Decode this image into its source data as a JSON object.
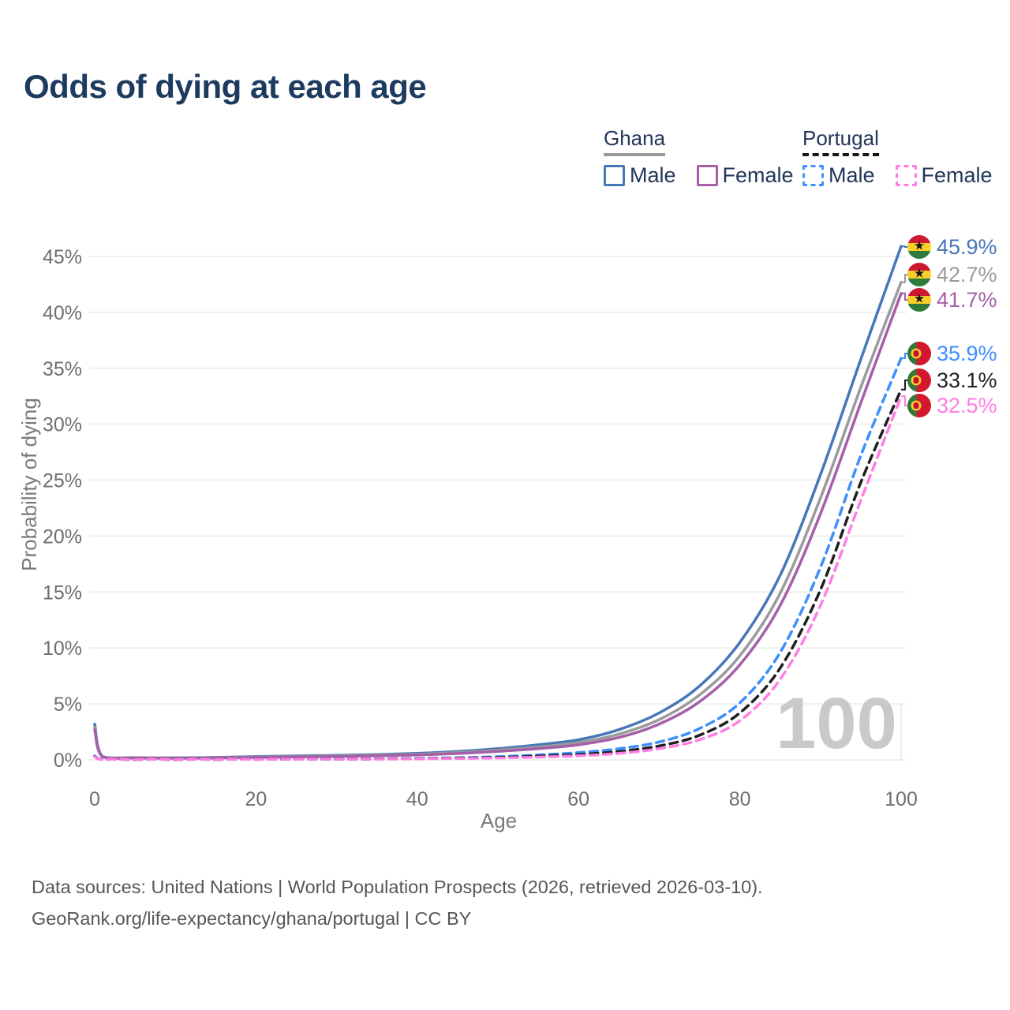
{
  "chart_data": {
    "type": "line",
    "title": "Odds of dying at each age",
    "xlabel": "Age",
    "ylabel": "Probability of dying",
    "xlim": [
      0,
      100
    ],
    "ylim": [
      0,
      46
    ],
    "xticks": [
      0,
      20,
      40,
      60,
      80,
      100
    ],
    "yticks": [
      0,
      5,
      10,
      15,
      20,
      25,
      30,
      35,
      40,
      45
    ],
    "ytick_suffix": "%",
    "grid": "horizontal",
    "legend_position": "top-right",
    "watermark": "100",
    "x": [
      0,
      1,
      5,
      10,
      15,
      20,
      25,
      30,
      35,
      40,
      45,
      50,
      55,
      60,
      65,
      70,
      75,
      80,
      85,
      90,
      95,
      100
    ],
    "series": [
      {
        "id": "ghana-male",
        "name": "Ghana male",
        "country": "Ghana",
        "legend_label": "Male",
        "color": "#4677b8",
        "dash": "solid",
        "flag": "gh",
        "end_label": "45.9%",
        "end_value": 45.9,
        "values": [
          3.2,
          0.3,
          0.2,
          0.18,
          0.22,
          0.3,
          0.35,
          0.4,
          0.48,
          0.58,
          0.75,
          1.0,
          1.35,
          1.8,
          2.7,
          4.2,
          6.6,
          10.5,
          16.5,
          25.5,
          35.8,
          45.9
        ]
      },
      {
        "id": "ghana-all",
        "name": "Ghana all",
        "country": "Ghana",
        "legend_label": null,
        "color": "#9b9b9b",
        "dash": "solid",
        "flag": "gh",
        "end_label": "42.7%",
        "end_value": 42.7,
        "values": [
          2.9,
          0.28,
          0.18,
          0.16,
          0.19,
          0.26,
          0.3,
          0.35,
          0.42,
          0.5,
          0.65,
          0.87,
          1.15,
          1.55,
          2.3,
          3.6,
          5.8,
          9.3,
          14.9,
          23.4,
          33.3,
          42.7
        ]
      },
      {
        "id": "ghana-female",
        "name": "Ghana female",
        "country": "Ghana",
        "legend_label": "Female",
        "color": "#a55fa8",
        "dash": "solid",
        "flag": "gh",
        "end_label": "41.7%",
        "end_value": 41.7,
        "values": [
          2.7,
          0.26,
          0.17,
          0.15,
          0.17,
          0.22,
          0.26,
          0.3,
          0.36,
          0.44,
          0.57,
          0.76,
          1.0,
          1.35,
          2.0,
          3.2,
          5.2,
          8.5,
          13.8,
          22.0,
          31.9,
          41.7
        ]
      },
      {
        "id": "portugal-male",
        "name": "Portugal male",
        "country": "Portugal",
        "legend_label": "Male",
        "color": "#3d8eff",
        "dash": "dashed",
        "flag": "pt",
        "end_label": "35.9%",
        "end_value": 35.9,
        "values": [
          0.35,
          0.03,
          0.01,
          0.01,
          0.03,
          0.05,
          0.06,
          0.07,
          0.09,
          0.13,
          0.19,
          0.29,
          0.44,
          0.65,
          1.0,
          1.6,
          2.8,
          5.1,
          9.6,
          17.2,
          27.2,
          35.9
        ]
      },
      {
        "id": "portugal-all",
        "name": "Portugal all",
        "country": "Portugal",
        "legend_label": null,
        "color": "#1f1f1f",
        "dash": "dashed",
        "flag": "pt",
        "end_label": "33.1%",
        "end_value": 33.1,
        "values": [
          0.3,
          0.03,
          0.01,
          0.01,
          0.02,
          0.04,
          0.05,
          0.06,
          0.08,
          0.11,
          0.15,
          0.22,
          0.33,
          0.48,
          0.75,
          1.25,
          2.2,
          4.2,
          8.2,
          15.2,
          24.8,
          33.1
        ]
      },
      {
        "id": "portugal-female",
        "name": "Portugal female",
        "country": "Portugal",
        "legend_label": "Female",
        "color": "#ff7de4",
        "dash": "dashed",
        "flag": "pt",
        "end_label": "32.5%",
        "end_value": 32.5,
        "values": [
          0.28,
          0.02,
          0.01,
          0.01,
          0.02,
          0.03,
          0.04,
          0.05,
          0.06,
          0.09,
          0.12,
          0.17,
          0.25,
          0.37,
          0.58,
          1.0,
          1.8,
          3.5,
          7.2,
          13.8,
          23.2,
          32.5
        ]
      }
    ]
  },
  "legend": {
    "groups": [
      {
        "title": "Ghana",
        "rule_style": "solid",
        "rule_color": "#9a9a9a",
        "items": [
          {
            "label": "Male",
            "series": 0
          },
          {
            "label": "Female",
            "series": 2
          }
        ]
      },
      {
        "title": "Portugal",
        "rule_style": "dashed",
        "rule_color": "#161616",
        "items": [
          {
            "label": "Male",
            "series": 3
          },
          {
            "label": "Female",
            "series": 5
          }
        ]
      }
    ]
  },
  "footer": {
    "line1": "Data sources: United Nations | World Population Prospects (2026, retrieved 2026-03-10).",
    "line2": "GeoRank.org/life-expectancy/ghana/portugal | CC BY"
  }
}
